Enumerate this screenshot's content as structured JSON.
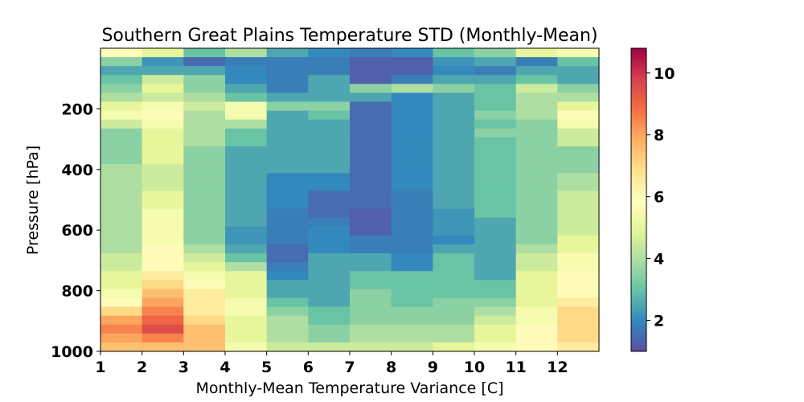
{
  "chart_data": {
    "type": "heatmap",
    "title": "Southern Great Plains Temperature STD (Monthly-Mean)",
    "xlabel": "Monthly-Mean Temperature Variance [C]",
    "ylabel": "Pressure [hPa]",
    "x_ticks": [
      "1",
      "2",
      "3",
      "4",
      "5",
      "6",
      "7",
      "8",
      "9",
      "10",
      "11",
      "12"
    ],
    "y_ticks": [
      "200",
      "400",
      "600",
      "800",
      "1000"
    ],
    "y_tick_values": [
      200,
      400,
      600,
      800,
      1000
    ],
    "ylim": [
      1000,
      0
    ],
    "xlim": [
      1,
      13
    ],
    "colormap": "Spectral_r",
    "color_range": [
      1,
      10.8
    ],
    "colorbar_ticks": [
      "2",
      "4",
      "6",
      "8",
      "10"
    ],
    "colorbar_tick_values": [
      2,
      4,
      6,
      8,
      10
    ],
    "grid": false,
    "rows": [
      {
        "pressure": 10,
        "values": [
          6.0,
          5.0,
          3.0,
          4.0,
          2.5,
          2.0,
          1.8,
          2.0,
          3.0,
          3.5,
          5.0,
          5.5
        ]
      },
      {
        "pressure": 30,
        "values": [
          3.5,
          2.2,
          1.5,
          1.8,
          1.8,
          1.8,
          1.3,
          1.3,
          2.2,
          2.5,
          1.8,
          3.0
        ]
      },
      {
        "pressure": 60,
        "values": [
          2.5,
          2.5,
          2.5,
          2.0,
          1.8,
          1.8,
          1.3,
          1.3,
          2.0,
          1.8,
          2.5,
          2.5
        ]
      },
      {
        "pressure": 90,
        "values": [
          3.0,
          4.5,
          3.5,
          2.0,
          1.8,
          2.5,
          1.3,
          1.8,
          2.5,
          2.5,
          3.0,
          2.5
        ]
      },
      {
        "pressure": 120,
        "values": [
          3.5,
          5.0,
          3.5,
          2.5,
          1.8,
          2.5,
          3.5,
          4.0,
          3.5,
          3.0,
          4.5,
          3.5
        ]
      },
      {
        "pressure": 150,
        "values": [
          4.0,
          4.5,
          4.0,
          3.0,
          2.5,
          2.5,
          2.5,
          2.0,
          2.5,
          3.0,
          4.0,
          4.0
        ]
      },
      {
        "pressure": 180,
        "values": [
          5.0,
          5.5,
          4.5,
          5.5,
          3.5,
          3.5,
          1.5,
          2.0,
          2.5,
          3.0,
          4.0,
          5.0
        ]
      },
      {
        "pressure": 210,
        "values": [
          5.5,
          6.0,
          4.0,
          5.5,
          2.5,
          3.0,
          1.5,
          2.0,
          2.5,
          3.5,
          4.0,
          6.0
        ]
      },
      {
        "pressure": 240,
        "values": [
          4.5,
          5.5,
          4.0,
          4.0,
          2.5,
          2.5,
          1.5,
          2.0,
          2.5,
          3.0,
          3.5,
          5.5
        ]
      },
      {
        "pressure": 270,
        "values": [
          3.5,
          5.0,
          4.0,
          3.0,
          2.5,
          2.5,
          1.5,
          2.0,
          2.5,
          3.5,
          3.5,
          4.5
        ]
      },
      {
        "pressure": 300,
        "values": [
          3.5,
          5.0,
          4.0,
          3.0,
          2.5,
          2.5,
          1.5,
          2.0,
          2.5,
          3.0,
          3.5,
          4.5
        ]
      },
      {
        "pressure": 330,
        "values": [
          3.5,
          5.0,
          3.5,
          2.5,
          2.5,
          2.5,
          1.5,
          2.0,
          2.5,
          3.0,
          3.5,
          3.5
        ]
      },
      {
        "pressure": 360,
        "values": [
          3.5,
          5.0,
          3.5,
          2.5,
          2.5,
          2.5,
          1.5,
          2.0,
          2.5,
          3.0,
          3.5,
          3.5
        ]
      },
      {
        "pressure": 390,
        "values": [
          4.0,
          4.5,
          3.5,
          2.5,
          2.5,
          2.5,
          1.5,
          2.0,
          2.5,
          3.0,
          3.5,
          3.5
        ]
      },
      {
        "pressure": 420,
        "values": [
          4.0,
          4.5,
          3.5,
          2.5,
          2.0,
          2.0,
          1.5,
          2.0,
          2.5,
          3.0,
          3.5,
          4.0
        ]
      },
      {
        "pressure": 450,
        "values": [
          4.0,
          4.5,
          3.5,
          2.5,
          2.0,
          2.0,
          1.5,
          2.0,
          2.5,
          3.0,
          3.5,
          4.0
        ]
      },
      {
        "pressure": 480,
        "values": [
          4.0,
          5.0,
          3.5,
          2.5,
          2.0,
          1.5,
          1.5,
          1.8,
          2.5,
          3.0,
          3.5,
          4.5
        ]
      },
      {
        "pressure": 510,
        "values": [
          4.0,
          5.0,
          3.5,
          2.5,
          2.0,
          1.5,
          1.5,
          1.8,
          2.5,
          3.0,
          3.5,
          4.5
        ]
      },
      {
        "pressure": 540,
        "values": [
          4.0,
          5.5,
          3.5,
          2.5,
          1.8,
          1.5,
          1.3,
          1.8,
          2.2,
          3.0,
          3.5,
          4.5
        ]
      },
      {
        "pressure": 570,
        "values": [
          4.0,
          5.5,
          3.5,
          2.5,
          1.8,
          1.8,
          1.3,
          1.8,
          2.2,
          2.5,
          3.5,
          4.5
        ]
      },
      {
        "pressure": 600,
        "values": [
          4.0,
          5.5,
          3.5,
          2.2,
          1.8,
          2.0,
          1.3,
          1.8,
          2.2,
          2.5,
          3.5,
          4.5
        ]
      },
      {
        "pressure": 630,
        "values": [
          4.0,
          5.5,
          3.5,
          2.2,
          1.8,
          2.0,
          1.8,
          1.8,
          2.0,
          2.5,
          3.5,
          5.0
        ]
      },
      {
        "pressure": 660,
        "values": [
          4.0,
          6.0,
          4.0,
          2.5,
          1.5,
          2.0,
          1.8,
          1.8,
          2.5,
          2.5,
          4.0,
          5.0
        ]
      },
      {
        "pressure": 690,
        "values": [
          4.5,
          6.0,
          4.5,
          3.0,
          1.5,
          2.5,
          2.5,
          2.0,
          3.0,
          2.5,
          4.5,
          5.5
        ]
      },
      {
        "pressure": 720,
        "values": [
          4.5,
          6.0,
          5.0,
          4.0,
          1.8,
          2.5,
          2.5,
          2.0,
          3.0,
          2.5,
          4.5,
          5.5
        ]
      },
      {
        "pressure": 750,
        "values": [
          5.0,
          6.5,
          5.5,
          5.0,
          2.0,
          2.5,
          3.0,
          3.0,
          3.0,
          2.5,
          5.0,
          6.0
        ]
      },
      {
        "pressure": 780,
        "values": [
          5.0,
          7.0,
          6.0,
          5.0,
          2.5,
          2.5,
          3.0,
          3.0,
          3.0,
          3.0,
          5.0,
          6.0
        ]
      },
      {
        "pressure": 810,
        "values": [
          5.5,
          7.5,
          6.5,
          5.0,
          2.5,
          2.5,
          3.5,
          3.0,
          3.0,
          3.0,
          5.0,
          6.0
        ]
      },
      {
        "pressure": 840,
        "values": [
          6.0,
          8.0,
          6.5,
          5.5,
          3.0,
          2.5,
          3.5,
          3.0,
          3.5,
          3.5,
          5.0,
          6.5
        ]
      },
      {
        "pressure": 870,
        "values": [
          7.0,
          8.5,
          6.5,
          5.5,
          3.5,
          3.0,
          3.5,
          3.5,
          3.5,
          4.0,
          5.5,
          7.0
        ]
      },
      {
        "pressure": 900,
        "values": [
          8.0,
          9.0,
          7.0,
          5.0,
          4.0,
          3.0,
          3.5,
          3.5,
          3.5,
          4.5,
          5.5,
          7.0
        ]
      },
      {
        "pressure": 930,
        "values": [
          8.5,
          9.5,
          7.5,
          5.0,
          4.0,
          3.5,
          4.0,
          4.0,
          4.0,
          5.0,
          6.0,
          7.0
        ]
      },
      {
        "pressure": 960,
        "values": [
          8.0,
          8.5,
          7.5,
          5.0,
          4.0,
          3.5,
          4.0,
          4.0,
          4.0,
          5.0,
          6.0,
          7.0
        ]
      },
      {
        "pressure": 990,
        "values": [
          7.5,
          7.5,
          7.5,
          5.5,
          4.5,
          4.5,
          4.5,
          4.5,
          5.0,
          5.5,
          6.0,
          6.5
        ]
      }
    ]
  }
}
